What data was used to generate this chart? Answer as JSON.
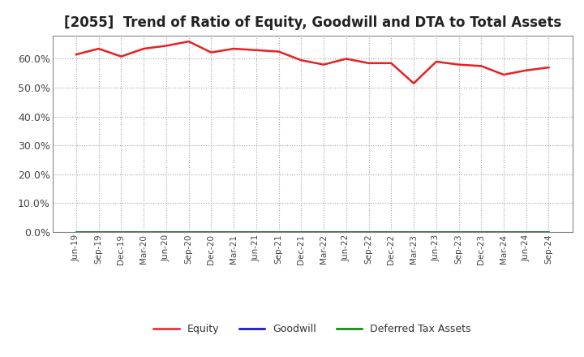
{
  "title": "[2055]  Trend of Ratio of Equity, Goodwill and DTA to Total Assets",
  "x_labels": [
    "Jun-19",
    "Sep-19",
    "Dec-19",
    "Mar-20",
    "Jun-20",
    "Sep-20",
    "Dec-20",
    "Mar-21",
    "Jun-21",
    "Sep-21",
    "Dec-21",
    "Mar-22",
    "Jun-22",
    "Sep-22",
    "Dec-22",
    "Mar-23",
    "Jun-23",
    "Sep-23",
    "Dec-23",
    "Mar-24",
    "Jun-24",
    "Sep-24"
  ],
  "equity": [
    61.5,
    63.5,
    60.8,
    63.5,
    64.5,
    66.0,
    62.2,
    63.5,
    63.0,
    62.5,
    59.5,
    58.0,
    60.0,
    58.5,
    58.5,
    51.5,
    59.0,
    58.0,
    57.5,
    54.5,
    56.0,
    57.0
  ],
  "goodwill": [
    0.0,
    0.0,
    0.0,
    0.0,
    0.0,
    0.0,
    0.0,
    0.0,
    0.0,
    0.0,
    0.0,
    0.0,
    0.0,
    0.0,
    0.0,
    0.0,
    0.0,
    0.0,
    0.0,
    0.0,
    0.0,
    0.0
  ],
  "dta": [
    0.0,
    0.0,
    0.0,
    0.0,
    0.0,
    0.0,
    0.0,
    0.0,
    0.0,
    0.0,
    0.0,
    0.0,
    0.0,
    0.0,
    0.0,
    0.0,
    0.0,
    0.0,
    0.0,
    0.0,
    0.0,
    0.0
  ],
  "equity_color": "#e82020",
  "goodwill_color": "#0000cc",
  "dta_color": "#008000",
  "ylim": [
    0,
    68
  ],
  "yticks": [
    0,
    10,
    20,
    30,
    40,
    50,
    60
  ],
  "ytick_labels": [
    "0.0%",
    "10.0%",
    "20.0%",
    "30.0%",
    "40.0%",
    "50.0%",
    "60.0%"
  ],
  "background_color": "#ffffff",
  "plot_bg_color": "#ffffff",
  "grid_color": "#999999",
  "title_fontsize": 12,
  "legend_labels": [
    "Equity",
    "Goodwill",
    "Deferred Tax Assets"
  ],
  "line_width": 1.8
}
